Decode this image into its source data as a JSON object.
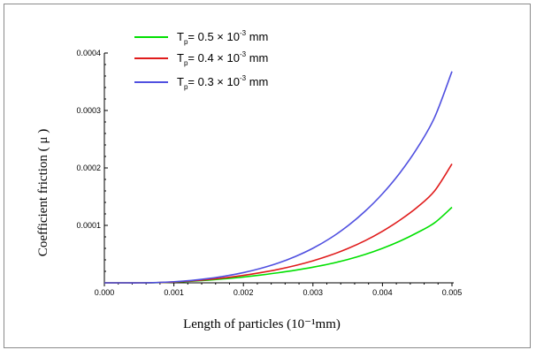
{
  "chart_data": {
    "type": "line",
    "title": "",
    "xlabel": "Length of particles (10⁻¹mm)",
    "ylabel": "Coefficient friction ( μ )",
    "xlim": [
      0,
      0.005
    ],
    "ylim": [
      0,
      0.0004
    ],
    "x_ticks": [
      "0.000",
      "0.001",
      "0.002",
      "0.003",
      "0.004",
      "0.005"
    ],
    "y_ticks": [
      "0.0001",
      "0.0002",
      "0.0003",
      "0.0004"
    ],
    "legend_position": "top-center",
    "grid": false,
    "x": [
      0,
      0.00025,
      0.0005,
      0.00075,
      0.001,
      0.00125,
      0.0015,
      0.00175,
      0.002,
      0.00225,
      0.0025,
      0.00275,
      0.003,
      0.00325,
      0.0035,
      0.00375,
      0.004,
      0.00425,
      0.0045,
      0.00475,
      0.005
    ],
    "series": [
      {
        "name": "Tp= 0.5 × 10-3 mm",
        "legend": {
          "pre": "T",
          "sub": "p",
          "mid": "= 0.5 × 10",
          "sup": "-3",
          "post": " mm"
        },
        "color": "#00e000",
        "values": [
          0,
          0,
          0,
          3e-07,
          1.2e-06,
          2.7e-06,
          4.7e-06,
          7.2e-06,
          1.01e-05,
          1.36e-05,
          1.75e-05,
          2.2e-05,
          2.72e-05,
          3.33e-05,
          4.06e-05,
          4.94e-05,
          6e-05,
          7.25e-05,
          8.73e-05,
          0.0001045,
          0.0001315
        ]
      },
      {
        "name": "Tp= 0.4 × 10-3 mm",
        "legend": {
          "pre": "T",
          "sub": "p",
          "mid": "= 0.4 × 10",
          "sup": "-3",
          "post": " mm"
        },
        "color": "#e01c1c",
        "values": [
          0,
          0,
          0,
          4e-07,
          1.5e-06,
          3.3e-06,
          5.8e-06,
          9e-06,
          1.3e-05,
          1.78e-05,
          2.34e-05,
          3.02e-05,
          3.83e-05,
          4.8e-05,
          5.96e-05,
          7.34e-05,
          8.98e-05,
          0.000109,
          0.0001315,
          0.00016,
          0.000207
        ]
      },
      {
        "name": "Tp= 0.3 × 10-3 mm",
        "legend": {
          "pre": "T",
          "sub": "p",
          "mid": "= 0.3 × 10",
          "sup": "-3",
          "post": " mm"
        },
        "color": "#5050e0",
        "values": [
          0,
          0,
          0,
          5e-07,
          1.9e-06,
          4.2e-06,
          7.6e-06,
          1.2e-05,
          1.78e-05,
          2.52e-05,
          3.44e-05,
          4.6e-05,
          6.02e-05,
          7.77e-05,
          9.9e-05,
          0.0001246,
          0.000155,
          0.0001912,
          0.0002345,
          0.000288,
          0.000368
        ]
      }
    ]
  }
}
